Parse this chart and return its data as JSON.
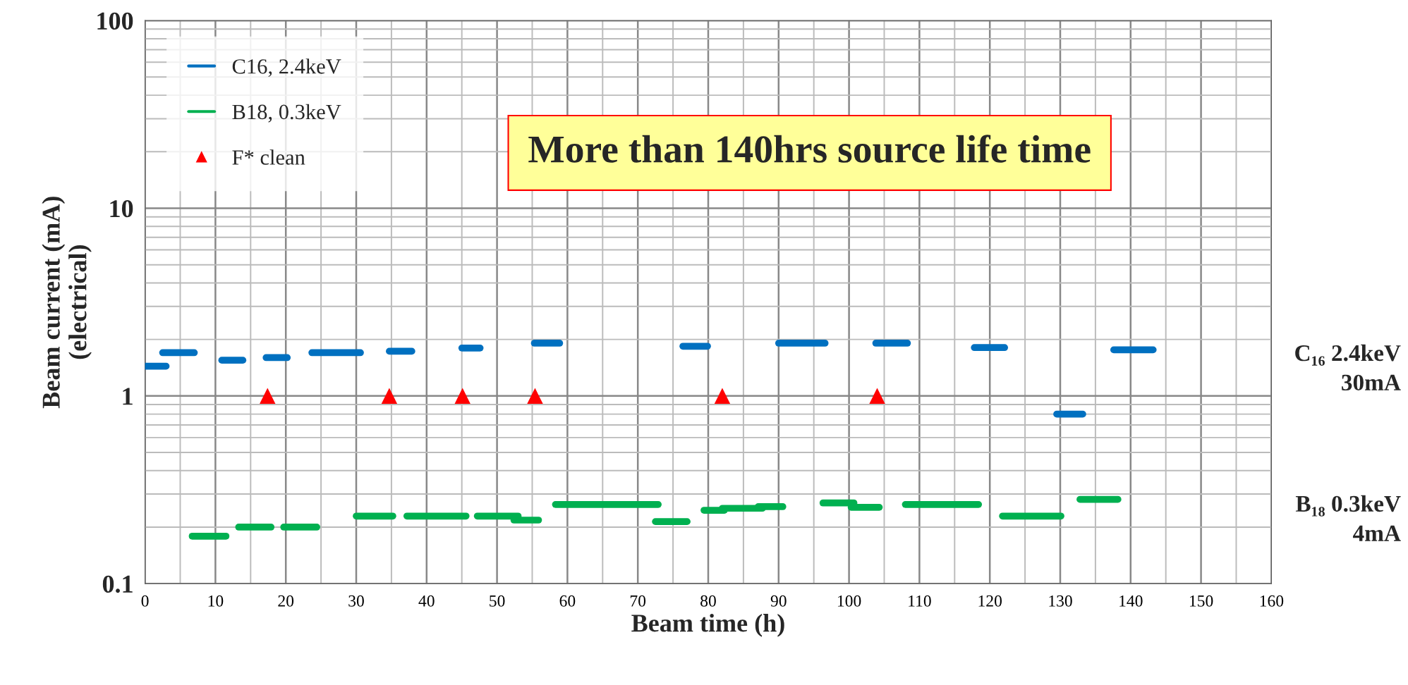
{
  "chart_data": {
    "type": "line",
    "xlabel": "Beam time (h)",
    "ylabel": "Beam current (mA)\n(electrical)",
    "log": "y",
    "xlim": [
      0,
      160
    ],
    "xticks": [
      0,
      10,
      20,
      30,
      40,
      50,
      60,
      70,
      80,
      90,
      100,
      110,
      120,
      130,
      140,
      150,
      160
    ],
    "ylim": [
      0.1,
      100
    ],
    "yticks": [
      0.1,
      1,
      10,
      100
    ],
    "grid": true,
    "legend": "top left",
    "series": [
      {
        "name": "C16, 2.4keV",
        "color": "#0070c0",
        "x": [
          0,
          3
        ],
        "values": [
          1.44,
          1.44
        ]
      },
      {
        "color": "#0070c0",
        "x": [
          2.5,
          7
        ],
        "values": [
          1.7,
          1.7
        ]
      },
      {
        "color": "#0070c0",
        "x": [
          10.9,
          13.9
        ],
        "values": [
          1.55,
          1.55
        ]
      },
      {
        "color": "#0070c0",
        "x": [
          17.2,
          20.2
        ],
        "values": [
          1.6,
          1.6
        ]
      },
      {
        "color": "#0070c0",
        "x": [
          23.7,
          30.6
        ],
        "values": [
          1.7,
          1.7
        ]
      },
      {
        "color": "#0070c0",
        "x": [
          34.7,
          37.9
        ],
        "values": [
          1.73,
          1.73
        ]
      },
      {
        "color": "#0070c0",
        "x": [
          45,
          47.6
        ],
        "values": [
          1.8,
          1.8
        ]
      },
      {
        "color": "#0070c0",
        "x": [
          55.3,
          58.9
        ],
        "values": [
          1.91,
          1.91
        ]
      },
      {
        "color": "#0070c0",
        "x": [
          76.4,
          79.9
        ],
        "values": [
          1.84,
          1.84
        ]
      },
      {
        "color": "#0070c0",
        "x": [
          90,
          96.6
        ],
        "values": [
          1.91,
          1.91
        ]
      },
      {
        "color": "#0070c0",
        "x": [
          103.8,
          108.3
        ],
        "values": [
          1.91,
          1.91
        ]
      },
      {
        "color": "#0070c0",
        "x": [
          117.8,
          122.1
        ],
        "values": [
          1.81,
          1.81
        ]
      },
      {
        "color": "#0070c0",
        "x": [
          129.5,
          133.2
        ],
        "values": [
          0.8,
          0.8
        ]
      },
      {
        "color": "#0070c0",
        "x": [
          137.6,
          143.2
        ],
        "values": [
          1.76,
          1.76
        ]
      },
      {
        "name": "B18, 0.3keV",
        "color": "#00b050",
        "x": [
          6.7,
          11.5
        ],
        "values": [
          0.179,
          0.179
        ]
      },
      {
        "color": "#00b050",
        "x": [
          13.3,
          17.9
        ],
        "values": [
          0.2,
          0.2
        ]
      },
      {
        "color": "#00b050",
        "x": [
          19.7,
          24.4
        ],
        "values": [
          0.2,
          0.2
        ]
      },
      {
        "color": "#00b050",
        "x": [
          30,
          35.2
        ],
        "values": [
          0.229,
          0.229
        ]
      },
      {
        "color": "#00b050",
        "x": [
          37.2,
          45.6
        ],
        "values": [
          0.229,
          0.229
        ]
      },
      {
        "color": "#00b050",
        "x": [
          47.2,
          53
        ],
        "values": [
          0.229,
          0.229
        ]
      },
      {
        "color": "#00b050",
        "x": [
          52.4,
          55.9
        ],
        "values": [
          0.218,
          0.218
        ]
      },
      {
        "color": "#00b050",
        "x": [
          58.3,
          72.9
        ],
        "values": [
          0.264,
          0.264
        ]
      },
      {
        "color": "#00b050",
        "x": [
          72.5,
          77
        ],
        "values": [
          0.214,
          0.214
        ]
      },
      {
        "color": "#00b050",
        "x": [
          79.4,
          82.3
        ],
        "values": [
          0.246,
          0.246
        ]
      },
      {
        "color": "#00b050",
        "x": [
          82,
          87.7
        ],
        "values": [
          0.252,
          0.252
        ]
      },
      {
        "color": "#00b050",
        "x": [
          87.1,
          90.6
        ],
        "values": [
          0.257,
          0.257
        ]
      },
      {
        "color": "#00b050",
        "x": [
          96.3,
          100.7
        ],
        "values": [
          0.269,
          0.269
        ]
      },
      {
        "color": "#00b050",
        "x": [
          100.3,
          104.3
        ],
        "values": [
          0.255,
          0.255
        ]
      },
      {
        "color": "#00b050",
        "x": [
          108,
          118.4
        ],
        "values": [
          0.264,
          0.264
        ]
      },
      {
        "color": "#00b050",
        "x": [
          121.8,
          130.1
        ],
        "values": [
          0.229,
          0.229
        ]
      },
      {
        "color": "#00b050",
        "x": [
          132.8,
          138.2
        ],
        "values": [
          0.281,
          0.281
        ]
      },
      {
        "name": "F* clean",
        "color": "#ff0000",
        "type": "scatter",
        "marker": "triangle",
        "x": [
          17.4,
          34.7,
          45.1,
          55.4,
          82.0,
          104.0
        ],
        "values": [
          1,
          1,
          1,
          1,
          1,
          1
        ]
      }
    ],
    "annotations": [
      "More than 140hrs source life time",
      "C₁₆ 2.4keV\n30mA",
      "B₁₈ 0.3keV\n4mA"
    ]
  }
}
